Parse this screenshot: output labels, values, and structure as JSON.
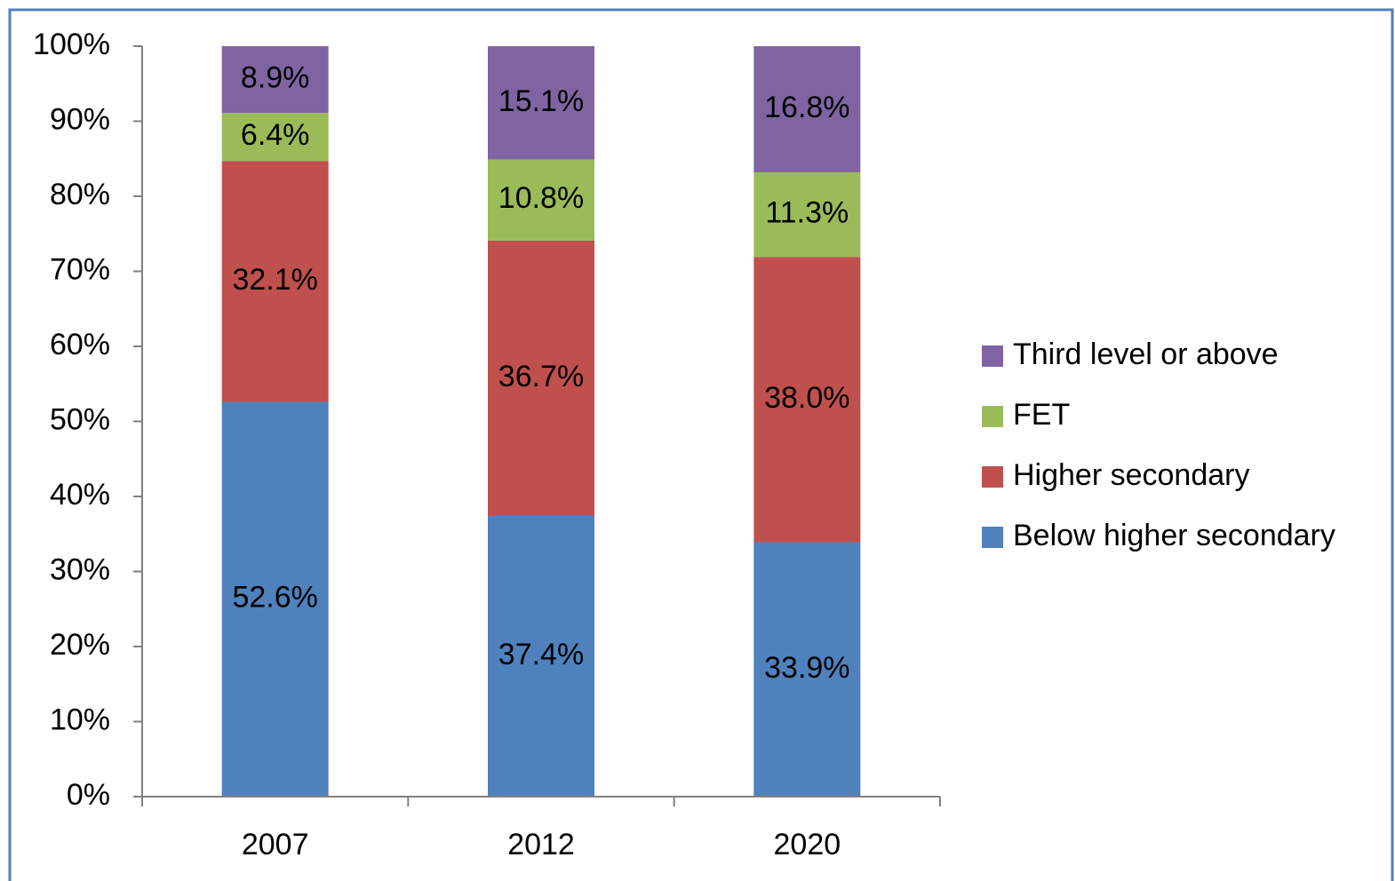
{
  "chart_data": {
    "type": "stacked_bar",
    "categories": [
      "2007",
      "2012",
      "2020"
    ],
    "series": [
      {
        "name": "Below higher secondary",
        "color": "#4f81bd",
        "values": [
          52.6,
          37.4,
          33.9
        ],
        "value_labels": [
          "52.6%",
          "37.4%",
          "33.9%"
        ]
      },
      {
        "name": "Higher secondary",
        "color": "#c0504d",
        "values": [
          32.1,
          36.7,
          38.0
        ],
        "value_labels": [
          "32.1%",
          "36.7%",
          "38.0%"
        ]
      },
      {
        "name": "FET",
        "color": "#9bbb59",
        "values": [
          6.4,
          10.8,
          11.3
        ],
        "value_labels": [
          "6.4%",
          "10.8%",
          "11.3%"
        ]
      },
      {
        "name": "Third level or above",
        "color": "#8064a2",
        "values": [
          8.9,
          15.1,
          16.8
        ],
        "value_labels": [
          "8.9%",
          "15.1%",
          "16.8%"
        ]
      }
    ],
    "ylim": [
      0,
      100
    ],
    "yticks": [
      {
        "value": 0,
        "label": "0%"
      },
      {
        "value": 10,
        "label": "10%"
      },
      {
        "value": 20,
        "label": "20%"
      },
      {
        "value": 30,
        "label": "30%"
      },
      {
        "value": 40,
        "label": "40%"
      },
      {
        "value": 50,
        "label": "50%"
      },
      {
        "value": 60,
        "label": "60%"
      },
      {
        "value": 70,
        "label": "70%"
      },
      {
        "value": 80,
        "label": "80%"
      },
      {
        "value": 90,
        "label": "90%"
      },
      {
        "value": 100,
        "label": "100%"
      }
    ],
    "grid": false,
    "legend": "right"
  }
}
